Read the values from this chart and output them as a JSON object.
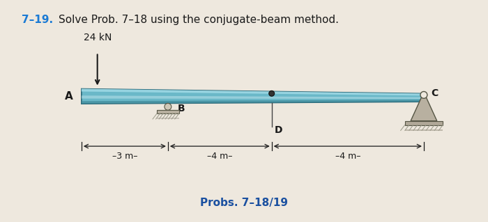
{
  "title_number": "7–19.",
  "title_text": "Solve Prob. 7–18 using the conjugate-beam method.",
  "subtitle": "Probs. 7–18/19",
  "load_label": "24 kN",
  "label_A": "A",
  "label_B": "B",
  "label_C": "C",
  "label_D": "D",
  "dim1": "––3 m–",
  "dim2": "––4 m–",
  "dim3": "––4 m–",
  "bg_color": "#eee8de",
  "beam_main_color": "#6ab8c8",
  "beam_top_highlight": "#9dd8e4",
  "beam_bot_shadow": "#3e8898",
  "beam_mid_light": "#c0e4ec",
  "beam_edge_color": "#2a6878",
  "title_num_color": "#1a7ad4",
  "subtitle_color": "#1a50a0",
  "text_color": "#1a1a1a",
  "support_color": "#c0b8a8",
  "support_edge": "#555544",
  "hatch_color": "#999988"
}
